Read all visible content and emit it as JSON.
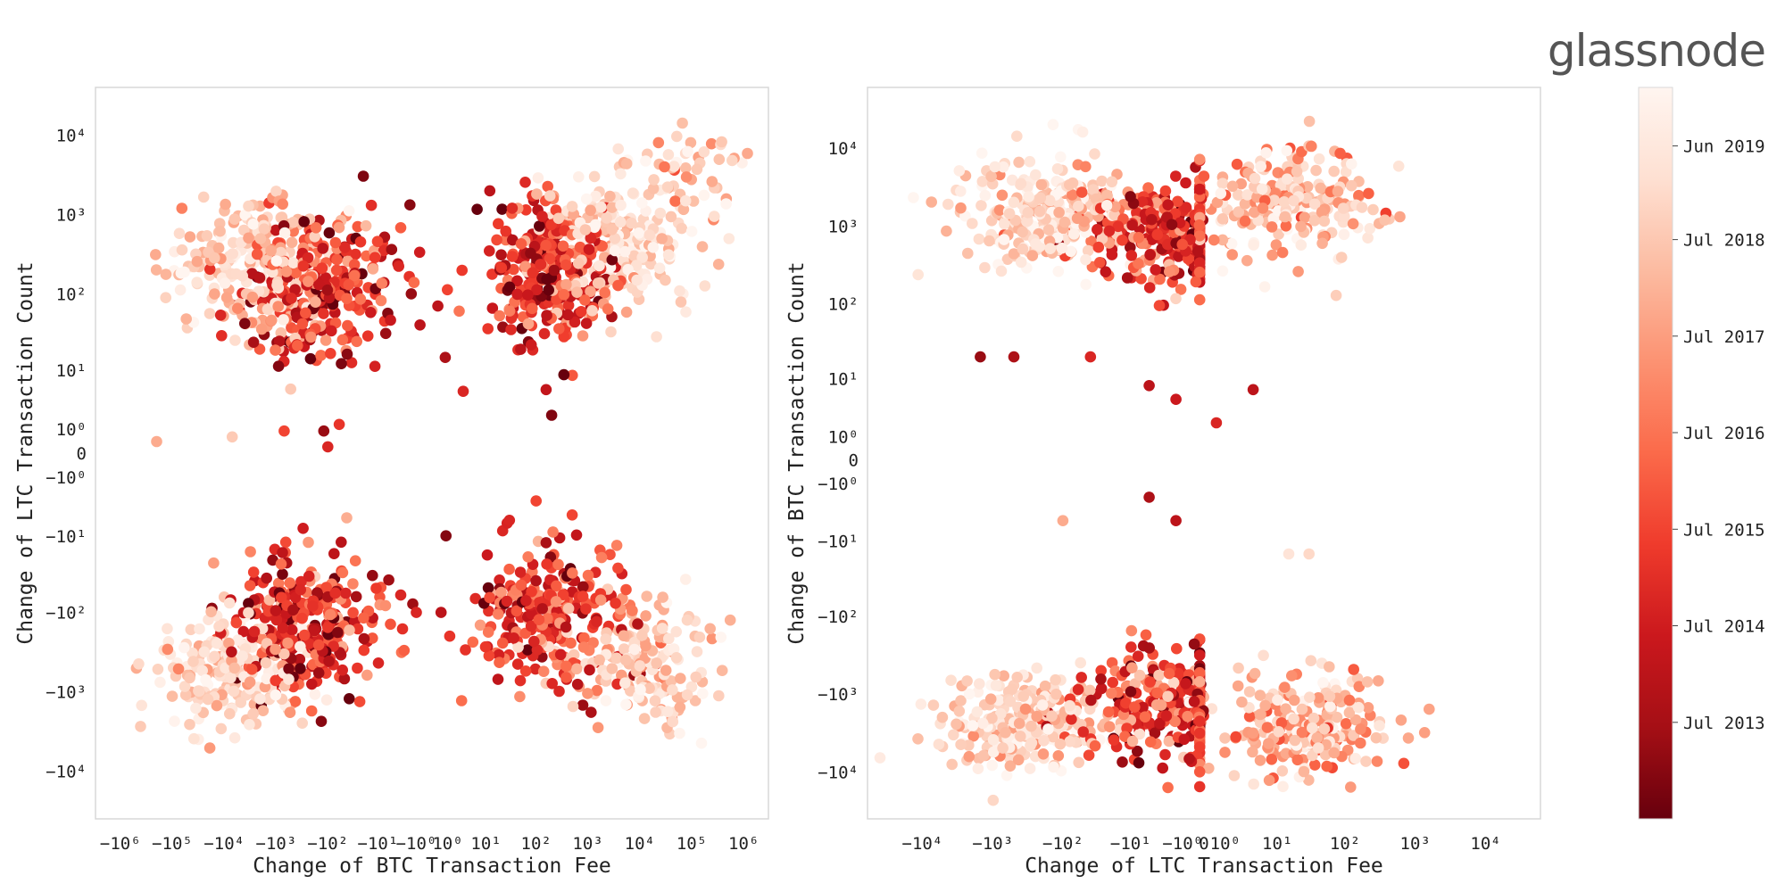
{
  "brand": {
    "logo_text": "glassnode"
  },
  "chart_data": [
    {
      "type": "scatter",
      "xlabel": "Change of BTC Transaction Fee",
      "ylabel": "Change of LTC Transaction Count",
      "xscale": "symlog",
      "yscale": "symlog",
      "xlim": [
        -3000000,
        3000000
      ],
      "ylim": [
        -40000,
        40000
      ],
      "x_ticks": [
        {
          "value": -1000000,
          "label": "−10⁶"
        },
        {
          "value": -100000,
          "label": "−10⁵"
        },
        {
          "value": -10000,
          "label": "−10⁴"
        },
        {
          "value": -1000,
          "label": "−10³"
        },
        {
          "value": -100,
          "label": "−10²"
        },
        {
          "value": -10,
          "label": "−10¹"
        },
        {
          "value": -1,
          "label": "−10⁰"
        },
        {
          "value": 1,
          "label": "10⁰"
        },
        {
          "value": 10,
          "label": "10¹"
        },
        {
          "value": 100,
          "label": "10²"
        },
        {
          "value": 1000,
          "label": "10³"
        },
        {
          "value": 10000,
          "label": "10⁴"
        },
        {
          "value": 100000,
          "label": "10⁵"
        },
        {
          "value": 1000000,
          "label": "10⁶"
        }
      ],
      "y_ticks": [
        {
          "value": 10000,
          "label": "10⁴"
        },
        {
          "value": 1000,
          "label": "10³"
        },
        {
          "value": 100,
          "label": "10²"
        },
        {
          "value": 10,
          "label": "10¹"
        },
        {
          "value": 1,
          "label": "10⁰"
        },
        {
          "value": 0,
          "label": "0"
        },
        {
          "value": -1,
          "label": "−10⁰"
        },
        {
          "value": -10,
          "label": "−10¹"
        },
        {
          "value": -100,
          "label": "−10²"
        },
        {
          "value": -1000,
          "label": "−10³"
        },
        {
          "value": -10000,
          "label": "−10⁴"
        }
      ],
      "clusters": [
        {
          "x_center": -150,
          "y_center": 120,
          "x_spread": 0.75,
          "y_spread": 0.45,
          "count": 300,
          "color_center": 0.38,
          "color_spread": 0.22
        },
        {
          "x_center": -3000,
          "y_center": 250,
          "x_spread": 0.85,
          "y_spread": 0.4,
          "count": 220,
          "color_center": 0.82,
          "color_spread": 0.12
        },
        {
          "x_center": 200,
          "y_center": 180,
          "x_spread": 0.7,
          "y_spread": 0.45,
          "count": 300,
          "color_center": 0.35,
          "color_spread": 0.2
        },
        {
          "x_center": 5000,
          "y_center": 500,
          "x_spread": 0.6,
          "y_spread": 0.45,
          "count": 200,
          "color_center": 0.85,
          "color_spread": 0.1
        },
        {
          "x_center": 120000,
          "y_center": 3000,
          "x_spread": 0.5,
          "y_spread": 0.35,
          "count": 45,
          "color_center": 0.72,
          "color_spread": 0.12
        },
        {
          "x_center": -200,
          "y_center": -150,
          "x_spread": 0.7,
          "y_spread": 0.45,
          "count": 280,
          "color_center": 0.35,
          "color_spread": 0.2
        },
        {
          "x_center": -8000,
          "y_center": -500,
          "x_spread": 0.7,
          "y_spread": 0.4,
          "count": 200,
          "color_center": 0.85,
          "color_spread": 0.1
        },
        {
          "x_center": 150,
          "y_center": -120,
          "x_spread": 0.75,
          "y_spread": 0.45,
          "count": 270,
          "color_center": 0.38,
          "color_spread": 0.2
        },
        {
          "x_center": 15000,
          "y_center": -400,
          "x_spread": 0.6,
          "y_spread": 0.4,
          "count": 160,
          "color_center": 0.8,
          "color_spread": 0.12
        }
      ],
      "points": [
        {
          "x": -200000,
          "y": 0.4,
          "t": 0.7
        },
        {
          "x": -7000,
          "y": 0.6,
          "t": 0.8
        },
        {
          "x": -700,
          "y": 0.9,
          "t": 0.4
        },
        {
          "x": -120,
          "y": 0.9,
          "t": 0.1
        },
        {
          "x": -60,
          "y": 1.3,
          "t": 0.35
        },
        {
          "x": -100,
          "y": 0.2,
          "t": 0.3
        },
        {
          "x": -1.5,
          "y": 100,
          "t": 0.1
        },
        {
          "x": -0.7,
          "y": 40,
          "t": 0.2
        },
        {
          "x": 0.3,
          "y": 70,
          "t": 0.2
        },
        {
          "x": 0.8,
          "y": 15,
          "t": 0.15
        },
        {
          "x": 3,
          "y": 5,
          "t": 0.3
        },
        {
          "x": 0.5,
          "y": -100,
          "t": 0.2
        },
        {
          "x": -1,
          "y": -100,
          "t": 0.3
        },
        {
          "x": 1.2,
          "y": -200,
          "t": 0.35
        },
        {
          "x": -3,
          "y": -60,
          "t": 0.3
        },
        {
          "x": 12,
          "y": 2000,
          "t": 0.2
        },
        {
          "x": 200,
          "y": 2,
          "t": 0.05
        },
        {
          "x": 30,
          "y": -6,
          "t": 0.3
        },
        {
          "x": 100,
          "y": -3,
          "t": 0.4
        },
        {
          "x": 500,
          "y": -5,
          "t": 0.4
        }
      ]
    },
    {
      "type": "scatter",
      "xlabel": "Change of LTC Transaction Fee",
      "ylabel": "Change of BTC Transaction Count",
      "xscale": "symlog",
      "yscale": "symlog",
      "xlim": [
        -60000,
        60000
      ],
      "ylim": [
        -40000,
        60000
      ],
      "x_ticks": [
        {
          "value": -10000,
          "label": "−10⁴"
        },
        {
          "value": -1000,
          "label": "−10³"
        },
        {
          "value": -100,
          "label": "−10²"
        },
        {
          "value": -10,
          "label": "−10¹"
        },
        {
          "value": -1,
          "label": "−10⁰"
        },
        {
          "value": 0,
          "label": "0"
        },
        {
          "value": 1,
          "label": "10⁰"
        },
        {
          "value": 10,
          "label": "10¹"
        },
        {
          "value": 100,
          "label": "10²"
        },
        {
          "value": 1000,
          "label": "10³"
        },
        {
          "value": 10000,
          "label": "10⁴"
        }
      ],
      "y_ticks": [
        {
          "value": 10000,
          "label": "10⁴"
        },
        {
          "value": 1000,
          "label": "10³"
        },
        {
          "value": 100,
          "label": "10²"
        },
        {
          "value": 10,
          "label": "10¹"
        },
        {
          "value": 1,
          "label": "10⁰"
        },
        {
          "value": 0,
          "label": "0"
        },
        {
          "value": -1,
          "label": "−10⁰"
        },
        {
          "value": -10,
          "label": "−10¹"
        },
        {
          "value": -100,
          "label": "−10²"
        },
        {
          "value": -1000,
          "label": "−10³"
        },
        {
          "value": -10000,
          "label": "−10⁴"
        }
      ],
      "clusters": [
        {
          "x_center": -200,
          "y_center": 1500,
          "x_spread": 0.6,
          "y_spread": 0.35,
          "count": 260,
          "color_center": 0.85,
          "color_spread": 0.12
        },
        {
          "x_center": -1,
          "y_center": 800,
          "x_spread": 0.7,
          "y_spread": 0.35,
          "count": 300,
          "color_center": 0.38,
          "color_spread": 0.2
        },
        {
          "x_center": 20,
          "y_center": 2000,
          "x_spread": 0.6,
          "y_spread": 0.35,
          "count": 220,
          "color_center": 0.78,
          "color_spread": 0.15
        },
        {
          "x_center": -300,
          "y_center": -2500,
          "x_spread": 0.6,
          "y_spread": 0.3,
          "count": 250,
          "color_center": 0.85,
          "color_spread": 0.12
        },
        {
          "x_center": -1,
          "y_center": -1500,
          "x_spread": 0.7,
          "y_spread": 0.35,
          "count": 300,
          "color_center": 0.38,
          "color_spread": 0.2
        },
        {
          "x_center": 30,
          "y_center": -2500,
          "x_spread": 0.6,
          "y_spread": 0.35,
          "count": 220,
          "color_center": 0.72,
          "color_spread": 0.15
        }
      ],
      "points": [
        {
          "x": -5,
          "y": 8,
          "t": 0.2
        },
        {
          "x": -1.5,
          "y": 5,
          "t": 0.25
        },
        {
          "x": 0.5,
          "y": 2,
          "t": 0.3
        },
        {
          "x": 4,
          "y": 7,
          "t": 0.2
        },
        {
          "x": -40,
          "y": 20,
          "t": 0.3
        },
        {
          "x": -5,
          "y": -2,
          "t": 0.15
        },
        {
          "x": -1.5,
          "y": -5,
          "t": 0.2
        },
        {
          "x": 30,
          "y": -15,
          "t": 0.85
        },
        {
          "x": 15,
          "y": -15,
          "t": 0.9
        },
        {
          "x": -100,
          "y": -5,
          "t": 0.7
        },
        {
          "x": -1500,
          "y": 20,
          "t": 0.1
        },
        {
          "x": -500,
          "y": 20,
          "t": 0.15
        }
      ]
    },
    {
      "type": "colorbar",
      "colormap": "Reds_r",
      "ticks": [
        {
          "position": 0.92,
          "label": "Jun 2019"
        },
        {
          "position": 0.792,
          "label": "Jul 2018"
        },
        {
          "position": 0.66,
          "label": "Jul 2017"
        },
        {
          "position": 0.528,
          "label": "Jul 2016"
        },
        {
          "position": 0.396,
          "label": "Jul 2015"
        },
        {
          "position": 0.264,
          "label": "Jul 2014"
        },
        {
          "position": 0.132,
          "label": "Jul 2013"
        }
      ]
    }
  ]
}
